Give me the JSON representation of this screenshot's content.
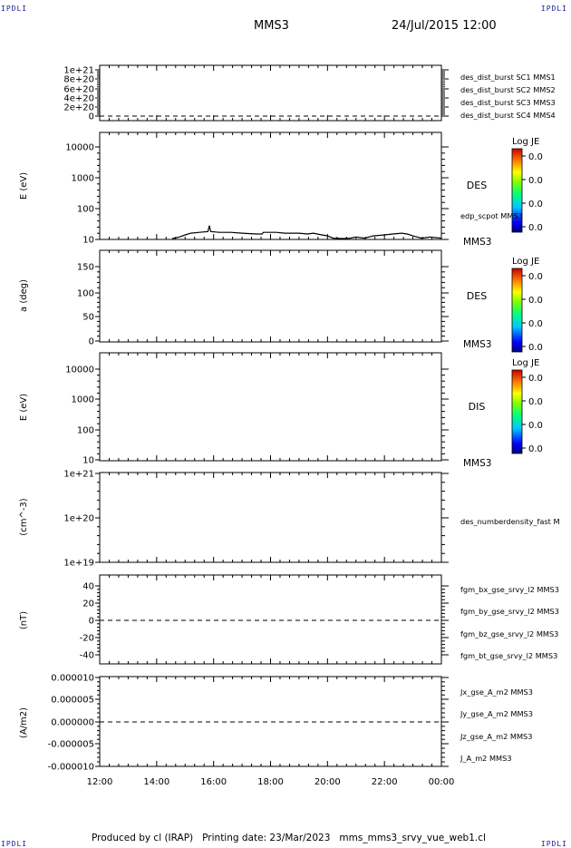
{
  "header": {
    "corner_tl": "IPDLI",
    "corner_tr": "IPDLI",
    "corner_bl": "IPDLI",
    "corner_br": "IPDLI",
    "title": "MMS3",
    "datetime": "24/Jul/2015 12:00"
  },
  "footer": {
    "produced_by": "Produced by cl (IRAP)",
    "printing_date": "Printing date: 23/Mar/2023",
    "filename": "mms_mms3_srvy_vue_web1.cl"
  },
  "colors": {
    "blue": "#0000cc",
    "magenta": "#cc00cc",
    "red": "#cc0000",
    "green": "#00aa00",
    "black": "#000000"
  },
  "chart_data": [
    {
      "id": "panel1",
      "type": "line",
      "ylabel": "",
      "yticks": [
        "1e+21",
        "8e+20",
        "6e+20",
        "4e+20",
        "2e+20",
        "0"
      ],
      "ylim": [
        0,
        1e+21
      ],
      "reference_line": 0,
      "series": [
        {
          "name": "des_dist_burst SC1 MMS1",
          "color": "#0000cc",
          "values": []
        },
        {
          "name": "des_dist_burst SC2 MMS2",
          "color": "#cc00cc",
          "values": []
        },
        {
          "name": "des_dist_burst SC3 MMS3",
          "color": "#cc0000",
          "values": []
        },
        {
          "name": "des_dist_burst SC4 MMS4",
          "color": "#00aa00",
          "values": []
        }
      ]
    },
    {
      "id": "panel2",
      "type": "line",
      "ylabel": "E (eV)",
      "yscale": "log",
      "ylim": [
        10,
        15000
      ],
      "yticks": [
        "10000",
        "1000",
        "100",
        "10"
      ],
      "species": "DES",
      "spacecraft": "MMS3",
      "colorbar": {
        "title": "Log JE",
        "ticks": [
          "0.0",
          "0.0",
          "0.0",
          "0.0"
        ]
      },
      "series": [
        {
          "name": "edp_scpot MMS3",
          "color": "#000000",
          "x": [
            14.55,
            14.8,
            15.0,
            15.2,
            15.5,
            15.8,
            15.85,
            15.9,
            16.2,
            16.6,
            17.0,
            17.5,
            17.7,
            17.75,
            18.2,
            18.5,
            19.0,
            19.3,
            19.5,
            19.8,
            20.0,
            20.2,
            20.5,
            20.6,
            20.8,
            21.0,
            21.3,
            21.6,
            22.0,
            22.3,
            22.6,
            22.8,
            23.0,
            23.3,
            23.6,
            24.0
          ],
          "values": [
            10,
            12,
            14,
            16,
            17,
            18,
            28,
            18,
            17,
            17,
            16,
            15,
            15,
            17,
            17,
            16,
            16,
            15,
            16,
            14,
            13,
            11,
            10,
            10,
            11,
            12,
            11,
            13,
            14,
            15,
            16,
            15,
            13,
            11,
            12,
            11
          ]
        }
      ]
    },
    {
      "id": "panel3",
      "type": "heatmap",
      "ylabel": "a (deg)",
      "ylim": [
        0,
        180
      ],
      "yticks": [
        "150",
        "100",
        "50",
        "0"
      ],
      "species": "DES",
      "spacecraft": "MMS3",
      "colorbar": {
        "title": "Log JE",
        "ticks": [
          "0.0",
          "0.0",
          "0.0",
          "0.0"
        ]
      }
    },
    {
      "id": "panel4",
      "type": "heatmap",
      "ylabel": "E (eV)",
      "yscale": "log",
      "ylim": [
        10,
        15000
      ],
      "yticks": [
        "10000",
        "1000",
        "100",
        "10"
      ],
      "species": "DIS",
      "spacecraft": "MMS3",
      "colorbar": {
        "title": "Log JE",
        "ticks": [
          "0.0",
          "0.0",
          "0.0",
          "0.0"
        ]
      }
    },
    {
      "id": "panel5",
      "type": "line",
      "ylabel": "(cm^-3)",
      "yscale": "log",
      "ylim": [
        1e+19,
        1e+21
      ],
      "yticks": [
        "1e+21",
        "1e+20",
        "1e+19"
      ],
      "series": [
        {
          "name": "des_numberdensity_fast M",
          "color": "#000000",
          "values": []
        }
      ]
    },
    {
      "id": "panel6",
      "type": "line",
      "ylabel": "(nT)",
      "ylim": [
        -48,
        50
      ],
      "yticks": [
        "40",
        "20",
        "0",
        "-20",
        "-40"
      ],
      "reference_line": 0,
      "series": [
        {
          "name": "fgm_bx_gse_srvy_l2 MMS3",
          "color": "#cc0000",
          "values": []
        },
        {
          "name": "fgm_by_gse_srvy_l2 MMS3",
          "color": "#00aa00",
          "values": []
        },
        {
          "name": "fgm_bz_gse_srvy_l2 MMS3",
          "color": "#0000cc",
          "values": []
        },
        {
          "name": "fgm_bt_gse_srvy_l2 MMS3",
          "color": "#000000",
          "values": []
        }
      ]
    },
    {
      "id": "panel7",
      "type": "line",
      "ylabel": "(A/m2)",
      "ylim": [
        -1e-05,
        1e-05
      ],
      "yticks": [
        "0.000010",
        "0.000005",
        "0.000000",
        "-0.000005",
        "-0.000010"
      ],
      "reference_line": 0,
      "xticks": [
        "12:00",
        "14:00",
        "16:00",
        "18:00",
        "20:00",
        "22:00",
        "00:00"
      ],
      "xlim": [
        12,
        24
      ],
      "series": [
        {
          "name": "Jx_gse_A_m2 MMS3",
          "color": "#cc0000",
          "values": []
        },
        {
          "name": "Jy_gse_A_m2 MMS3",
          "color": "#00aa00",
          "values": []
        },
        {
          "name": "Jz_gse_A_m2 MMS3",
          "color": "#0000cc",
          "values": []
        },
        {
          "name": "J_A_m2 MMS3",
          "color": "#000000",
          "values": []
        }
      ]
    }
  ]
}
